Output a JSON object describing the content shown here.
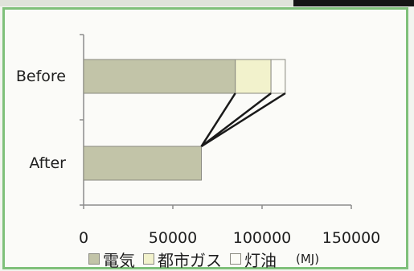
{
  "chart_data": {
    "type": "bar",
    "orientation": "horizontal",
    "stacked": true,
    "categories": [
      "Before",
      "After"
    ],
    "series": [
      {
        "name": "電気",
        "values": [
          85000,
          66000
        ],
        "color": "#c2c4a8"
      },
      {
        "name": "都市ガス",
        "values": [
          20000,
          0
        ],
        "color": "#f2f2cc"
      },
      {
        "name": "灯油",
        "values": [
          8000,
          0
        ],
        "color": "#fcfcf6"
      }
    ],
    "xlim": [
      0,
      150000
    ],
    "xticks": [
      "0",
      "50000",
      "100000",
      "150000"
    ],
    "unit": "(MJ)",
    "legend_position": "bottom",
    "grid": false,
    "connector_lines": true
  }
}
